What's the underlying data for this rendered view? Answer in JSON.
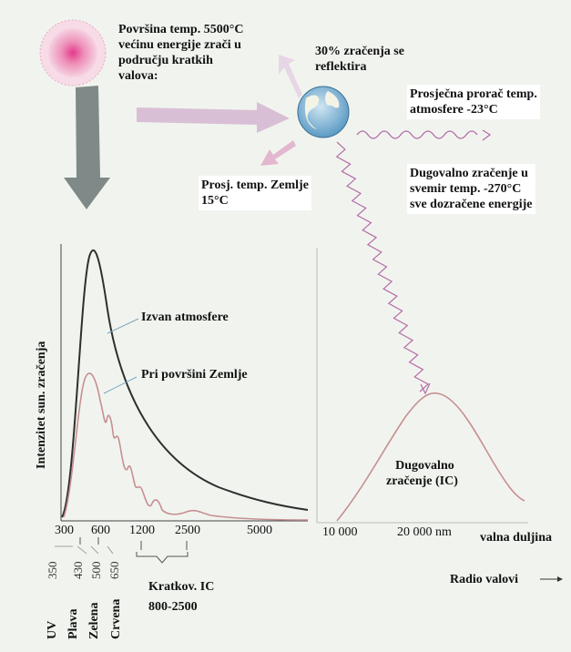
{
  "sun": {
    "text": [
      "Površina  temp. 5500°C",
      "većinu energije zrači u",
      "području kratkih",
      "valova:"
    ]
  },
  "reflect": {
    "text": [
      "30%  zračenja  se",
      "reflektira"
    ]
  },
  "atmosphere": {
    "text": [
      "Prosječna prorač temp.",
      "atmosfere -23°C"
    ]
  },
  "earth_temp": {
    "text": [
      "Prosj. temp. Zemlje",
      "15°C"
    ]
  },
  "longwave_space": {
    "text": [
      "Dugovalno zračenje u",
      "svemir temp. -270°C",
      "sve dozračene energije"
    ]
  },
  "left_chart": {
    "ylabel": "Intenzitet sun. zračenja",
    "curve_labels": [
      "Izvan atmosfere",
      "Pri površini Zemlje"
    ],
    "ticks": [
      "300",
      "600",
      "1200",
      "2500",
      "5000"
    ],
    "sub_ticks": [
      "350",
      "430",
      "500",
      "650"
    ],
    "color_bands": [
      "UV",
      "Plava",
      "Zelena",
      "Crvena"
    ],
    "ic_label": [
      "Kratkov. IC",
      "800-2500"
    ]
  },
  "right_chart": {
    "curve_label": [
      "Dugovalno",
      "zračenje (IC)"
    ],
    "ticks": [
      "10 000",
      "20 000 nm"
    ],
    "xlabel": "valna duljina",
    "radio": "Radio valovi"
  },
  "colors": {
    "curve_dark": "#2f2f2f",
    "curve_pink": "#c78f92",
    "arrow_grey": "#7f8a88",
    "arrow_pink": "#d9bfd6"
  }
}
